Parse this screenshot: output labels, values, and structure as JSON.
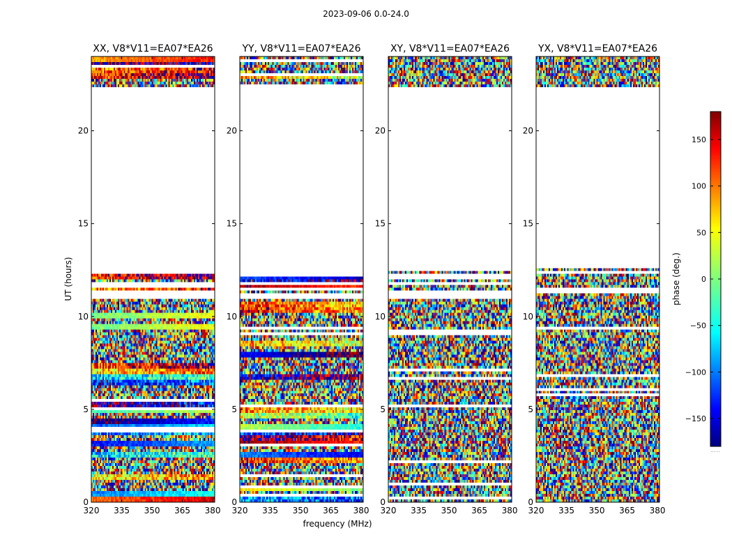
{
  "figure": {
    "suptitle": "2023-09-06 0.0-24.0"
  },
  "chart_data": {
    "type": "heatmap",
    "xlabel": "frequency (MHz)",
    "ylabel": "UT (hours)",
    "xlim": [
      320,
      381
    ],
    "ylim": [
      0,
      24
    ],
    "xticks": [
      320,
      335,
      350,
      365,
      380
    ],
    "yticks": [
      0,
      5,
      10,
      15,
      20
    ],
    "ytick_labels": [
      "0",
      "5",
      "10",
      "15",
      "20"
    ],
    "panels": [
      {
        "title": "XX, V8*V11=EA07*EA26",
        "product": "XX"
      },
      {
        "title": "YY, V8*V11=EA07*EA26",
        "product": "YY"
      },
      {
        "title": "XY, V8*V11=EA07*EA26",
        "product": "XY"
      },
      {
        "title": "YX, V8*V11=EA07*EA26",
        "product": "YX"
      }
    ],
    "data_coverage_ut": [
      [
        0,
        12.7
      ],
      [
        22.3,
        24
      ]
    ],
    "colorbar": {
      "label": "phase (deg.)",
      "range": [
        -180,
        180
      ],
      "ticks": [
        150,
        100,
        50,
        0,
        -50,
        -100,
        -150
      ],
      "tick_labels": [
        "150",
        "100",
        "50",
        "0",
        "−50",
        "−100",
        "−150"
      ],
      "colormap": "jet",
      "colors": [
        "#00007f",
        "#0000ff",
        "#007fff",
        "#00ffff",
        "#7fff7f",
        "#ffff00",
        "#ff7f00",
        "#ff0000",
        "#7f0000"
      ],
      "footnote": "......"
    }
  }
}
